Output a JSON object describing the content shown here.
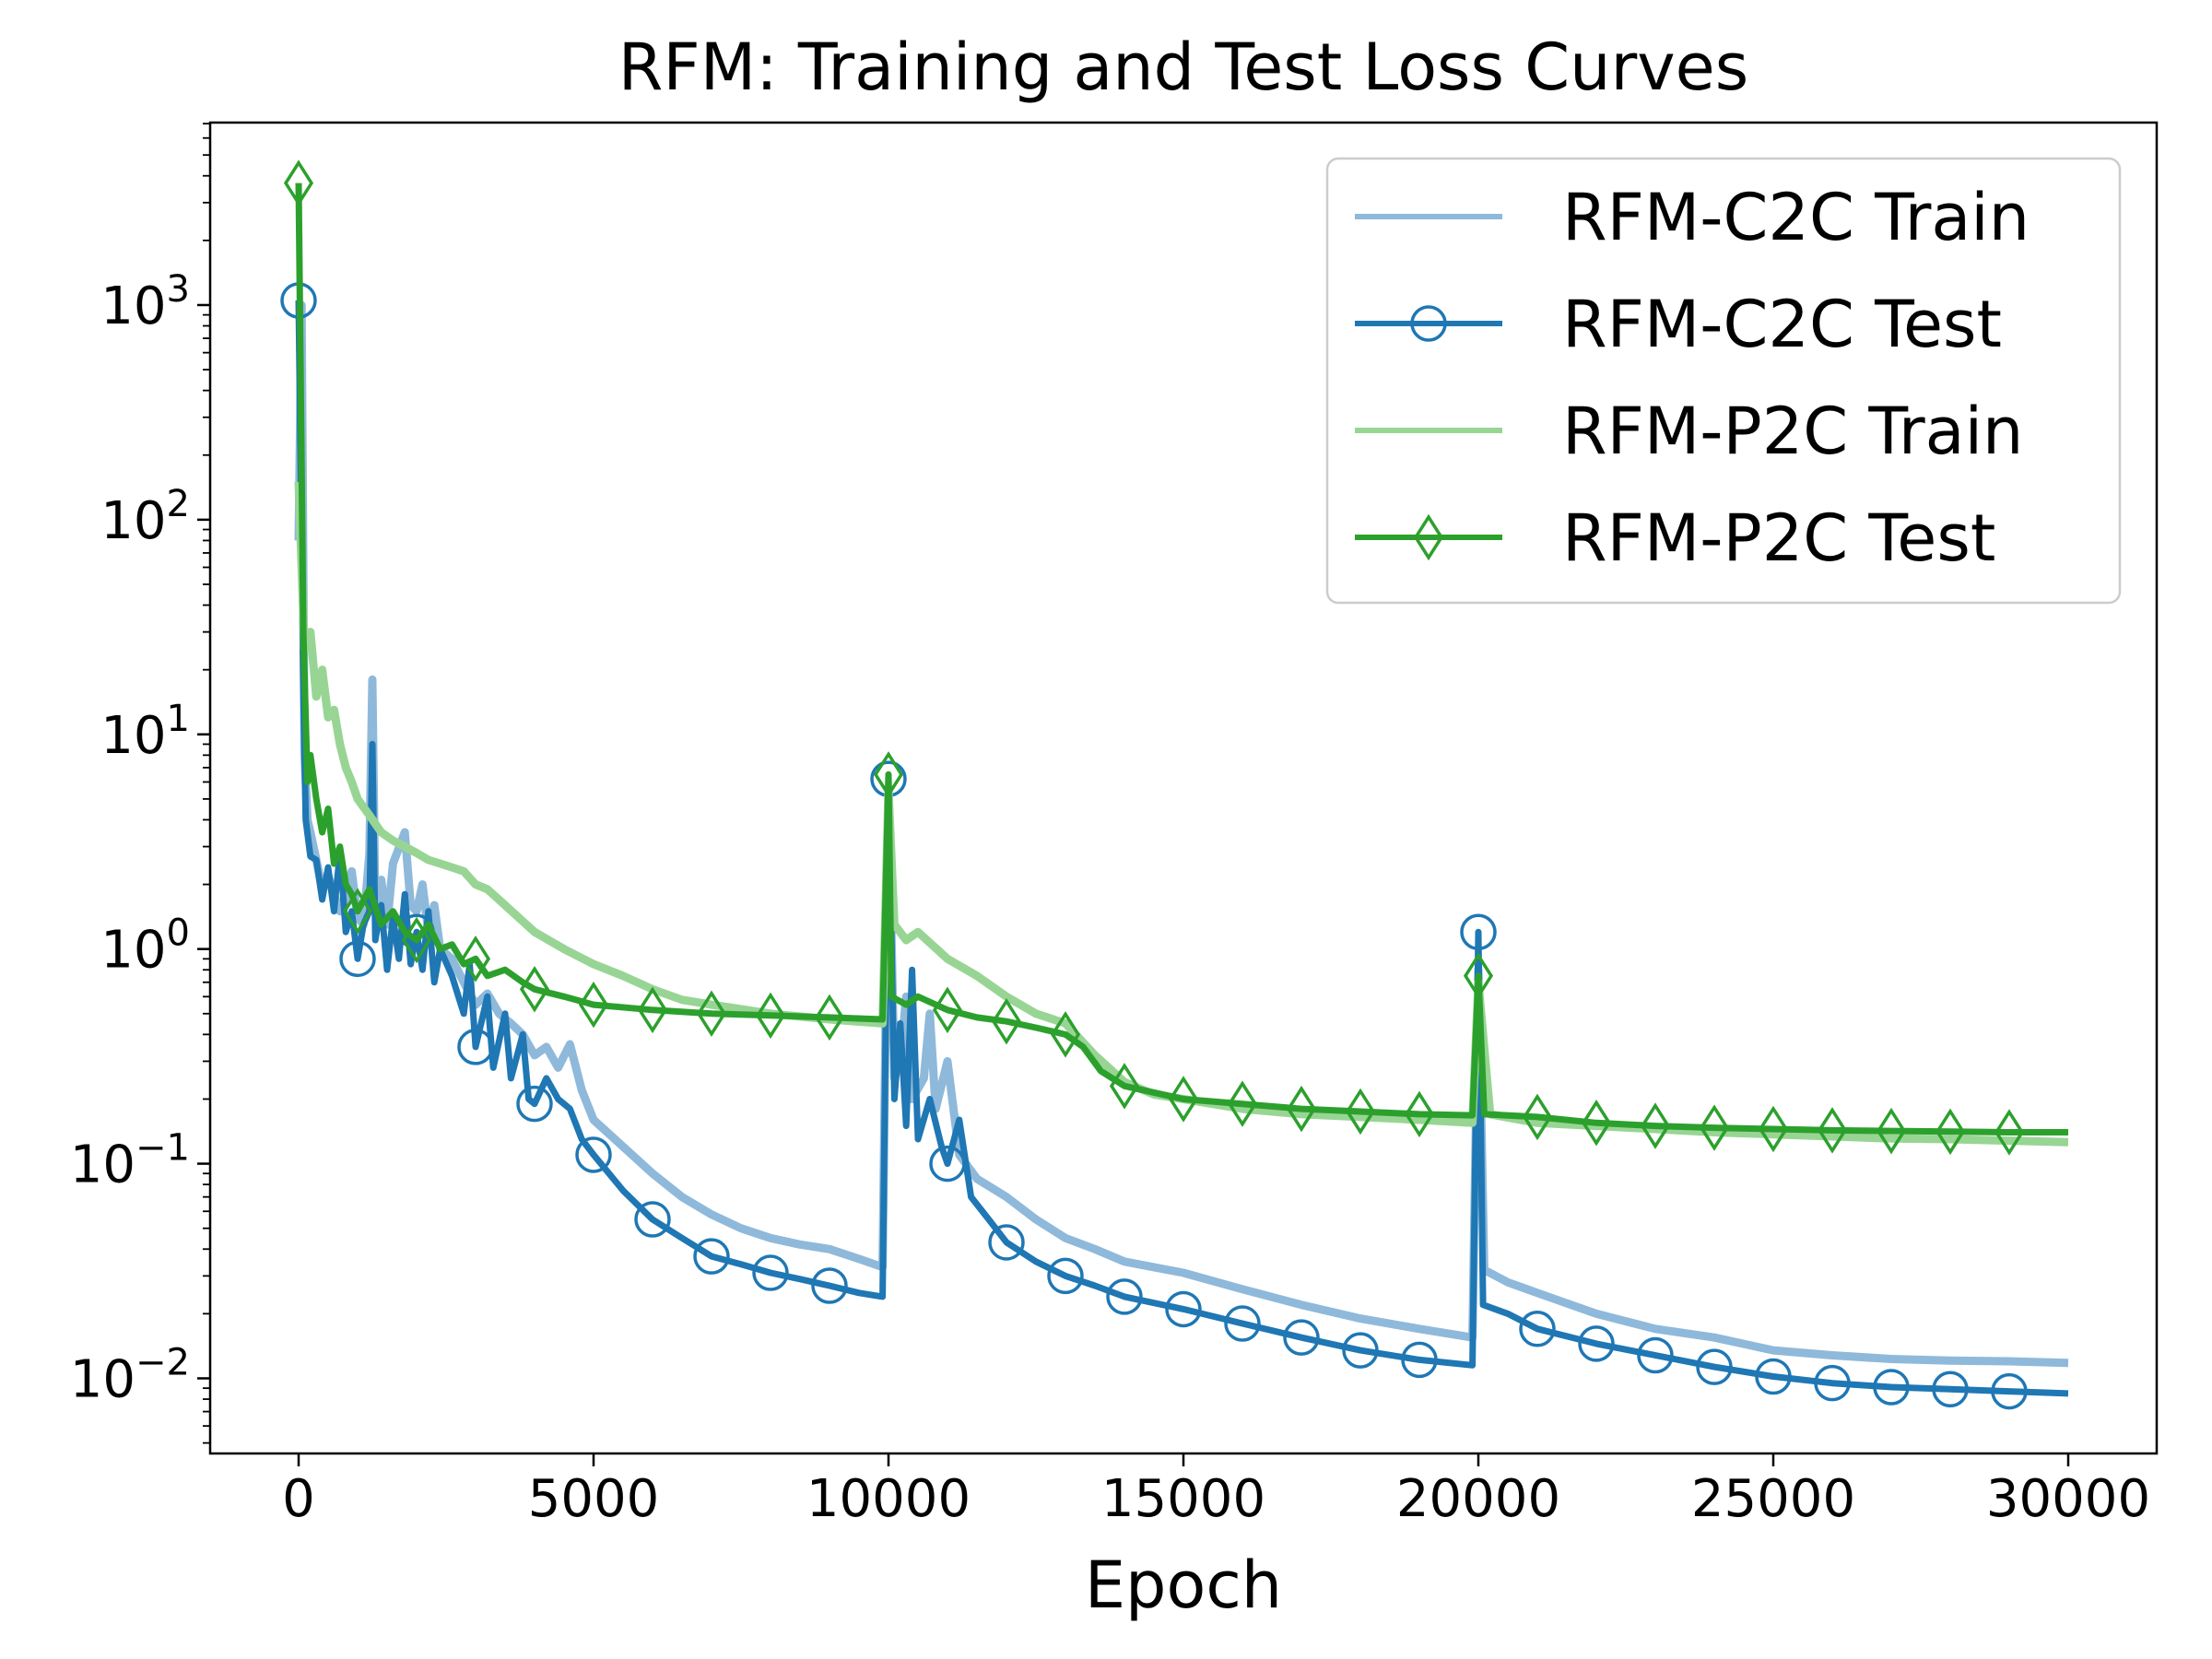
{
  "chart_data": {
    "type": "line",
    "title": "RFM: Training and Test Loss Curves",
    "xlabel": "Epoch",
    "ylabel": "",
    "xlim": [
      -1500,
      31500
    ],
    "ylim_log10": [
      -2.35,
      3.85
    ],
    "yscale": "log",
    "grid": false,
    "legend_position": "upper right",
    "x_ticks": [
      0,
      5000,
      10000,
      15000,
      20000,
      25000,
      30000
    ],
    "y_tick_exponents": [
      -2,
      -1,
      0,
      1,
      2,
      3
    ],
    "y_tick_base": "10",
    "series": [
      {
        "name": "RFM-C2C Train",
        "color": "#8fb9da",
        "marker": "none",
        "points": [
          [
            0,
            80
          ],
          [
            50,
            1000
          ],
          [
            100,
            8
          ],
          [
            150,
            4
          ],
          [
            200,
            3.5
          ],
          [
            300,
            2.6
          ],
          [
            400,
            1.9
          ],
          [
            500,
            2.2
          ],
          [
            600,
            1.8
          ],
          [
            700,
            1.5
          ],
          [
            800,
            1.7
          ],
          [
            900,
            2.3
          ],
          [
            1000,
            1.4
          ],
          [
            1100,
            1.3
          ],
          [
            1200,
            2.8
          ],
          [
            1250,
            18
          ],
          [
            1300,
            1.5
          ],
          [
            1400,
            2.1
          ],
          [
            1500,
            1.3
          ],
          [
            1600,
            2.5
          ],
          [
            1800,
            3.5
          ],
          [
            1900,
            1.6
          ],
          [
            2000,
            1.5
          ],
          [
            2100,
            2.0
          ],
          [
            2200,
            1.2
          ],
          [
            2300,
            1.6
          ],
          [
            2400,
            1.0
          ],
          [
            2600,
            0.9
          ],
          [
            2800,
            0.7
          ],
          [
            3000,
            0.55
          ],
          [
            3200,
            0.62
          ],
          [
            3400,
            0.5
          ],
          [
            3600,
            0.45
          ],
          [
            3800,
            0.4
          ],
          [
            4000,
            0.32
          ],
          [
            4200,
            0.35
          ],
          [
            4400,
            0.28
          ],
          [
            4600,
            0.36
          ],
          [
            4800,
            0.22
          ],
          [
            5000,
            0.16
          ],
          [
            5500,
            0.12
          ],
          [
            6000,
            0.09
          ],
          [
            6500,
            0.07
          ],
          [
            7000,
            0.058
          ],
          [
            7500,
            0.05
          ],
          [
            8000,
            0.045
          ],
          [
            8500,
            0.042
          ],
          [
            9000,
            0.04
          ],
          [
            9500,
            0.036
          ],
          [
            9900,
            0.033
          ],
          [
            10000,
            5.5
          ],
          [
            10100,
            0.25
          ],
          [
            10200,
            0.3
          ],
          [
            10300,
            0.6
          ],
          [
            10400,
            0.2
          ],
          [
            10600,
            0.25
          ],
          [
            10700,
            0.5
          ],
          [
            10800,
            0.18
          ],
          [
            11000,
            0.3
          ],
          [
            11200,
            0.11
          ],
          [
            11500,
            0.085
          ],
          [
            12000,
            0.07
          ],
          [
            12500,
            0.055
          ],
          [
            13000,
            0.045
          ],
          [
            13500,
            0.04
          ],
          [
            14000,
            0.035
          ],
          [
            15000,
            0.031
          ],
          [
            16000,
            0.026
          ],
          [
            17000,
            0.022
          ],
          [
            18000,
            0.019
          ],
          [
            19000,
            0.017
          ],
          [
            19900,
            0.0155
          ],
          [
            20000,
            0.8
          ],
          [
            20100,
            0.032
          ],
          [
            20500,
            0.028
          ],
          [
            21000,
            0.025
          ],
          [
            22000,
            0.02
          ],
          [
            23000,
            0.017
          ],
          [
            24000,
            0.0155
          ],
          [
            25000,
            0.0135
          ],
          [
            26000,
            0.0128
          ],
          [
            27000,
            0.0123
          ],
          [
            28000,
            0.0121
          ],
          [
            29000,
            0.012
          ],
          [
            30000,
            0.0118
          ]
        ]
      },
      {
        "name": "RFM-C2C Test",
        "color": "#1f77b4",
        "marker": "circle",
        "points": [
          [
            0,
            1050
          ],
          [
            80,
            16
          ],
          [
            120,
            4
          ],
          [
            200,
            2.7
          ],
          [
            300,
            2.6
          ],
          [
            400,
            1.7
          ],
          [
            500,
            2.4
          ],
          [
            600,
            1.5
          ],
          [
            700,
            2.8
          ],
          [
            800,
            1.2
          ],
          [
            900,
            1.5
          ],
          [
            1000,
            0.9
          ],
          [
            1100,
            1.3
          ],
          [
            1200,
            1.5
          ],
          [
            1250,
            9
          ],
          [
            1300,
            1.1
          ],
          [
            1400,
            1.6
          ],
          [
            1500,
            0.8
          ],
          [
            1600,
            1.4
          ],
          [
            1700,
            0.9
          ],
          [
            1800,
            1.8
          ],
          [
            1900,
            0.85
          ],
          [
            2000,
            1.2
          ],
          [
            2100,
            0.8
          ],
          [
            2200,
            1.5
          ],
          [
            2300,
            0.7
          ],
          [
            2400,
            1.0
          ],
          [
            2600,
            0.75
          ],
          [
            2800,
            0.5
          ],
          [
            2900,
            0.85
          ],
          [
            3000,
            0.35
          ],
          [
            3200,
            0.6
          ],
          [
            3300,
            0.28
          ],
          [
            3500,
            0.5
          ],
          [
            3600,
            0.25
          ],
          [
            3800,
            0.4
          ],
          [
            3900,
            0.2
          ],
          [
            4000,
            0.19
          ],
          [
            4200,
            0.25
          ],
          [
            4400,
            0.2
          ],
          [
            4600,
            0.18
          ],
          [
            4800,
            0.13
          ],
          [
            5000,
            0.11
          ],
          [
            5500,
            0.075
          ],
          [
            6000,
            0.055
          ],
          [
            6500,
            0.045
          ],
          [
            7000,
            0.037
          ],
          [
            7500,
            0.034
          ],
          [
            8000,
            0.031
          ],
          [
            8500,
            0.029
          ],
          [
            9000,
            0.027
          ],
          [
            9500,
            0.025
          ],
          [
            9900,
            0.024
          ],
          [
            10000,
            6.2
          ],
          [
            10100,
            0.2
          ],
          [
            10200,
            0.45
          ],
          [
            10300,
            0.15
          ],
          [
            10400,
            0.8
          ],
          [
            10500,
            0.13
          ],
          [
            10700,
            0.2
          ],
          [
            10900,
            0.12
          ],
          [
            11000,
            0.1
          ],
          [
            11200,
            0.16
          ],
          [
            11400,
            0.07
          ],
          [
            11700,
            0.055
          ],
          [
            12000,
            0.043
          ],
          [
            12500,
            0.035
          ],
          [
            13000,
            0.03
          ],
          [
            13500,
            0.027
          ],
          [
            14000,
            0.024
          ],
          [
            15000,
            0.021
          ],
          [
            16000,
            0.018
          ],
          [
            17000,
            0.0155
          ],
          [
            18000,
            0.0135
          ],
          [
            19000,
            0.0122
          ],
          [
            19900,
            0.0115
          ],
          [
            20000,
            1.2
          ],
          [
            20080,
            0.022
          ],
          [
            20500,
            0.02
          ],
          [
            21000,
            0.017
          ],
          [
            22000,
            0.0145
          ],
          [
            23000,
            0.0128
          ],
          [
            24000,
            0.0113
          ],
          [
            25000,
            0.0102
          ],
          [
            26000,
            0.0095
          ],
          [
            27000,
            0.0091
          ],
          [
            28000,
            0.0089
          ],
          [
            29000,
            0.0087
          ],
          [
            30000,
            0.0085
          ]
        ]
      },
      {
        "name": "RFM-P2C Train",
        "color": "#98d594",
        "marker": "none",
        "points": [
          [
            0,
            150
          ],
          [
            100,
            25
          ],
          [
            200,
            30
          ],
          [
            300,
            15
          ],
          [
            400,
            20
          ],
          [
            500,
            12
          ],
          [
            600,
            13
          ],
          [
            700,
            9
          ],
          [
            800,
            7
          ],
          [
            900,
            6
          ],
          [
            1000,
            5
          ],
          [
            1200,
            4.2
          ],
          [
            1400,
            3.5
          ],
          [
            1600,
            3.2
          ],
          [
            1800,
            3.0
          ],
          [
            2000,
            2.8
          ],
          [
            2200,
            2.6
          ],
          [
            2400,
            2.5
          ],
          [
            2600,
            2.4
          ],
          [
            2800,
            2.3
          ],
          [
            3000,
            2.0
          ],
          [
            3200,
            1.9
          ],
          [
            3500,
            1.6
          ],
          [
            4000,
            1.2
          ],
          [
            4500,
            1.0
          ],
          [
            5000,
            0.85
          ],
          [
            5500,
            0.75
          ],
          [
            6000,
            0.65
          ],
          [
            6500,
            0.58
          ],
          [
            7000,
            0.55
          ],
          [
            8000,
            0.5
          ],
          [
            9000,
            0.47
          ],
          [
            9900,
            0.45
          ],
          [
            10000,
            5.5
          ],
          [
            10100,
            1.3
          ],
          [
            10300,
            1.1
          ],
          [
            10500,
            1.2
          ],
          [
            11000,
            0.9
          ],
          [
            11500,
            0.75
          ],
          [
            12000,
            0.6
          ],
          [
            12500,
            0.5
          ],
          [
            13000,
            0.45
          ],
          [
            13500,
            0.32
          ],
          [
            14000,
            0.24
          ],
          [
            14500,
            0.21
          ],
          [
            15000,
            0.2
          ],
          [
            16000,
            0.18
          ],
          [
            17000,
            0.17
          ],
          [
            18000,
            0.165
          ],
          [
            19000,
            0.16
          ],
          [
            19900,
            0.155
          ],
          [
            20000,
            0.7
          ],
          [
            20200,
            0.17
          ],
          [
            21000,
            0.155
          ],
          [
            22000,
            0.15
          ],
          [
            23000,
            0.145
          ],
          [
            24000,
            0.14
          ],
          [
            25000,
            0.137
          ],
          [
            26000,
            0.134
          ],
          [
            27000,
            0.131
          ],
          [
            28000,
            0.13
          ],
          [
            29000,
            0.128
          ],
          [
            30000,
            0.126
          ]
        ]
      },
      {
        "name": "RFM-P2C Test",
        "color": "#2ca02c",
        "marker": "diamond",
        "points": [
          [
            0,
            3700
          ],
          [
            80,
            30
          ],
          [
            150,
            6
          ],
          [
            200,
            8
          ],
          [
            300,
            5
          ],
          [
            400,
            3.5
          ],
          [
            500,
            4.5
          ],
          [
            600,
            2.5
          ],
          [
            700,
            3.0
          ],
          [
            800,
            2.0
          ],
          [
            900,
            1.8
          ],
          [
            1000,
            1.5
          ],
          [
            1200,
            1.9
          ],
          [
            1400,
            1.3
          ],
          [
            1600,
            1.5
          ],
          [
            1800,
            1.2
          ],
          [
            2000,
            1.1
          ],
          [
            2200,
            1.3
          ],
          [
            2400,
            1.0
          ],
          [
            2600,
            1.05
          ],
          [
            2800,
            0.85
          ],
          [
            3000,
            0.9
          ],
          [
            3200,
            0.75
          ],
          [
            3500,
            0.8
          ],
          [
            3800,
            0.7
          ],
          [
            4000,
            0.65
          ],
          [
            4500,
            0.6
          ],
          [
            5000,
            0.55
          ],
          [
            6000,
            0.52
          ],
          [
            7000,
            0.5
          ],
          [
            8000,
            0.49
          ],
          [
            9000,
            0.48
          ],
          [
            9900,
            0.47
          ],
          [
            10000,
            6.5
          ],
          [
            10050,
            0.6
          ],
          [
            10300,
            0.55
          ],
          [
            10500,
            0.6
          ],
          [
            11000,
            0.52
          ],
          [
            11500,
            0.48
          ],
          [
            12000,
            0.46
          ],
          [
            12500,
            0.43
          ],
          [
            13000,
            0.4
          ],
          [
            13300,
            0.35
          ],
          [
            13600,
            0.27
          ],
          [
            14000,
            0.23
          ],
          [
            15000,
            0.2
          ],
          [
            16000,
            0.19
          ],
          [
            17000,
            0.18
          ],
          [
            18000,
            0.175
          ],
          [
            19000,
            0.17
          ],
          [
            19900,
            0.168
          ],
          [
            20000,
            0.75
          ],
          [
            20100,
            0.17
          ],
          [
            21000,
            0.165
          ],
          [
            22000,
            0.155
          ],
          [
            23000,
            0.15
          ],
          [
            24000,
            0.147
          ],
          [
            25000,
            0.145
          ],
          [
            26000,
            0.143
          ],
          [
            27000,
            0.142
          ],
          [
            28000,
            0.141
          ],
          [
            29000,
            0.14
          ],
          [
            30000,
            0.14
          ]
        ]
      }
    ]
  }
}
